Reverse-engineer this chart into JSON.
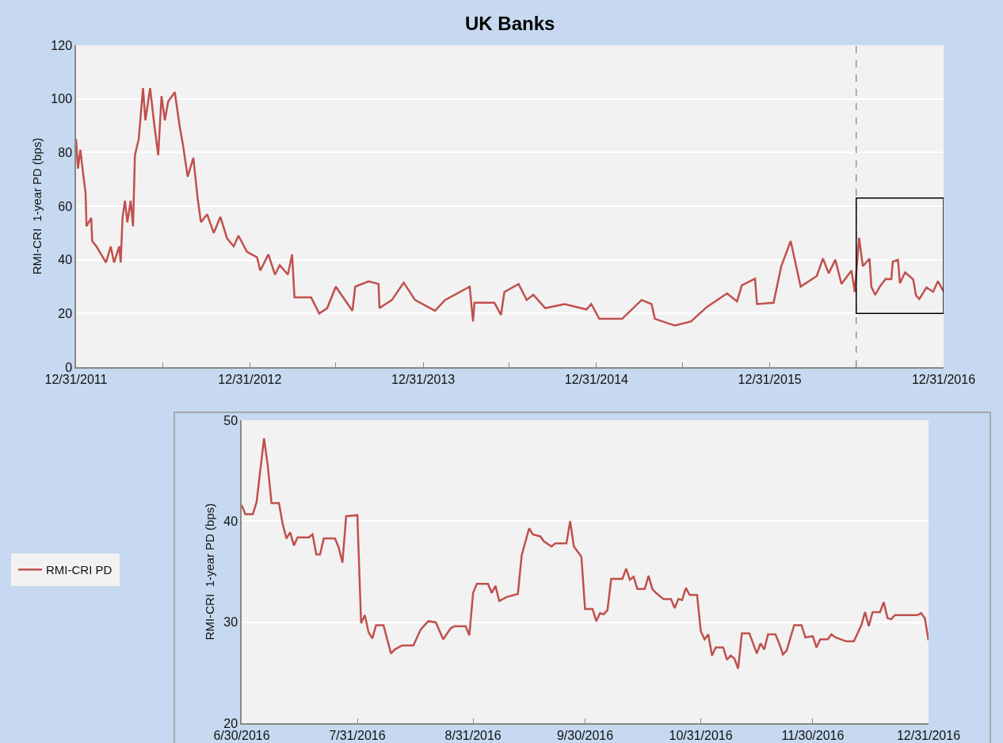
{
  "chart_data": [
    {
      "type": "line",
      "title": "UK Banks",
      "ylabel": "RMI-CRI  1-year PD (bps)",
      "x": [
        "2011-12-31",
        "2012-01-04",
        "2012-01-09",
        "2012-01-15",
        "2012-01-20",
        "2012-01-22",
        "2012-02-01",
        "2012-02-03",
        "2012-02-12",
        "2012-02-22",
        "2012-03-03",
        "2012-03-13",
        "2012-03-20",
        "2012-03-31",
        "2012-04-03",
        "2012-04-07",
        "2012-04-12",
        "2012-04-17",
        "2012-04-24",
        "2012-04-29",
        "2012-05-03",
        "2012-05-11",
        "2012-05-20",
        "2012-05-25",
        "2012-06-04",
        "2012-06-13",
        "2012-06-21",
        "2012-06-28",
        "2012-07-05",
        "2012-07-12",
        "2012-07-26",
        "2012-08-05",
        "2012-08-12",
        "2012-08-22",
        "2012-09-03",
        "2012-09-12",
        "2012-09-19",
        "2012-10-02",
        "2012-10-16",
        "2012-10-30",
        "2012-11-13",
        "2012-11-27",
        "2012-12-07",
        "2012-12-25",
        "2013-01-15",
        "2013-01-22",
        "2013-02-08",
        "2013-02-22",
        "2013-03-04",
        "2013-03-21",
        "2013-03-30",
        "2013-04-04",
        "2013-04-21",
        "2013-05-09",
        "2013-05-26",
        "2013-06-12",
        "2013-06-30",
        "2013-08-04",
        "2013-08-10",
        "2013-09-07",
        "2013-09-28",
        "2013-09-30",
        "2013-10-26",
        "2013-11-20",
        "2013-12-14",
        "2014-01-25",
        "2014-02-15",
        "2014-04-08",
        "2014-04-15",
        "2014-04-18",
        "2014-05-30",
        "2014-06-13",
        "2014-06-20",
        "2014-07-20",
        "2014-08-06",
        "2014-08-20",
        "2014-09-14",
        "2014-10-25",
        "2014-12-10",
        "2014-12-20",
        "2015-01-06",
        "2015-02-23",
        "2015-04-05",
        "2015-04-26",
        "2015-05-03",
        "2015-06-14",
        "2015-07-18",
        "2015-08-21",
        "2015-10-02",
        "2015-10-23",
        "2015-11-02",
        "2015-11-30",
        "2015-12-04",
        "2016-01-08",
        "2016-01-24",
        "2016-02-13",
        "2016-03-05",
        "2016-04-08",
        "2016-04-21",
        "2016-05-03",
        "2016-05-17",
        "2016-05-30",
        "2016-06-20",
        "2016-06-27",
        "2016-07-06",
        "2016-07-14",
        "2016-07-28",
        "2016-08-01",
        "2016-08-09",
        "2016-08-19",
        "2016-08-31",
        "2016-09-12",
        "2016-09-15",
        "2016-09-26",
        "2016-09-30",
        "2016-10-11",
        "2016-10-28",
        "2016-11-03",
        "2016-11-10",
        "2016-11-25",
        "2016-12-09",
        "2016-12-19",
        "2016-12-31"
      ],
      "series": [
        {
          "name": "RMI-CRI PD",
          "color": "#c0504d",
          "values": [
            85,
            74,
            81,
            72,
            65,
            52.5,
            55.6,
            47,
            45,
            42,
            39,
            45,
            39,
            45,
            39,
            56,
            62,
            54,
            62,
            52.5,
            79,
            85,
            104,
            92,
            104,
            90,
            79,
            101,
            92,
            99,
            102.5,
            90,
            83,
            71,
            78,
            63,
            54,
            57,
            50,
            56,
            48,
            45,
            49,
            43,
            41,
            36,
            42,
            34.5,
            38,
            34.5,
            42,
            26,
            26,
            26,
            20,
            22,
            30,
            21,
            30,
            32,
            31,
            22,
            25,
            31.5,
            25,
            21,
            25,
            30,
            17,
            24,
            24,
            19.5,
            28,
            31,
            25,
            27,
            22,
            23.5,
            21.5,
            23.5,
            18,
            18,
            25,
            23.5,
            18,
            15.5,
            17,
            22.5,
            27.5,
            24.5,
            30.5,
            33,
            23.5,
            24,
            37.5,
            47,
            30,
            34,
            40.5,
            35,
            40,
            31,
            36,
            28,
            48.2,
            37.6,
            40.5,
            29.9,
            26.9,
            30.1,
            32.9,
            32.8,
            39.3,
            40.0,
            31.3,
            35.3,
            32.7,
            26.7,
            25.4,
            29.7,
            28.1,
            32.0,
            28.2
          ]
        }
      ],
      "xlim": [
        "2011-12-31",
        "2016-12-31"
      ],
      "xticks": [
        {
          "value": "2011-12-31",
          "label": "12/31/2011"
        },
        {
          "value": "2012-06-30",
          "label": null
        },
        {
          "value": "2012-12-31",
          "label": "12/31/2012"
        },
        {
          "value": "2013-06-30",
          "label": null
        },
        {
          "value": "2013-12-31",
          "label": "12/31/2013"
        },
        {
          "value": "2014-06-30",
          "label": null
        },
        {
          "value": "2014-12-31",
          "label": "12/31/2014"
        },
        {
          "value": "2015-06-30",
          "label": null
        },
        {
          "value": "2015-12-31",
          "label": "12/31/2015"
        },
        {
          "value": "2016-06-30",
          "label": null
        },
        {
          "value": "2016-12-31",
          "label": "12/31/2016"
        }
      ],
      "ylim": [
        0,
        120
      ],
      "yticks": [
        0,
        20,
        40,
        60,
        80,
        100,
        120
      ],
      "ref_lines": [
        {
          "axis": "x",
          "value": "2016-06-30",
          "color": "#7f7f7f",
          "line_style": "dashed"
        }
      ],
      "grid": "y",
      "legend": "left",
      "marker": "none",
      "line_style": "solid"
    },
    {
      "type": "line",
      "ylabel": "RMI-CRI  1-year PD (bps)",
      "x": [
        "2016-06-30",
        "2016-07-01",
        "2016-07-03",
        "2016-07-04",
        "2016-07-06",
        "2016-07-07",
        "2016-07-08",
        "2016-07-10",
        "2016-07-11",
        "2016-07-12",
        "2016-07-13",
        "2016-07-14",
        "2016-07-15",
        "2016-07-18",
        "2016-07-19",
        "2016-07-20",
        "2016-07-21",
        "2016-07-22",
        "2016-07-25",
        "2016-07-26",
        "2016-07-27",
        "2016-07-28",
        "2016-07-31",
        "2016-08-01",
        "2016-08-02",
        "2016-08-03",
        "2016-08-04",
        "2016-08-05",
        "2016-08-07",
        "2016-08-09",
        "2016-08-10",
        "2016-08-12",
        "2016-08-15",
        "2016-08-17",
        "2016-08-19",
        "2016-08-21",
        "2016-08-23",
        "2016-08-25",
        "2016-08-26",
        "2016-08-29",
        "2016-08-30",
        "2016-08-31",
        "2016-09-01",
        "2016-09-04",
        "2016-09-05",
        "2016-09-06",
        "2016-09-07",
        "2016-09-09",
        "2016-09-12",
        "2016-09-13",
        "2016-09-15",
        "2016-09-16",
        "2016-09-18",
        "2016-09-19",
        "2016-09-21",
        "2016-09-22",
        "2016-09-25",
        "2016-09-26",
        "2016-09-27",
        "2016-09-29",
        "2016-09-30",
        "2016-10-02",
        "2016-10-03",
        "2016-10-04",
        "2016-10-05",
        "2016-10-06",
        "2016-10-07",
        "2016-10-10",
        "2016-10-11",
        "2016-10-12",
        "2016-10-13",
        "2016-10-14",
        "2016-10-16",
        "2016-10-17",
        "2016-10-18",
        "2016-10-19",
        "2016-10-21",
        "2016-10-23",
        "2016-10-24",
        "2016-10-25",
        "2016-10-26",
        "2016-10-27",
        "2016-10-28",
        "2016-10-30",
        "2016-10-31",
        "2016-11-01",
        "2016-11-02",
        "2016-11-03",
        "2016-11-04",
        "2016-11-06",
        "2016-11-07",
        "2016-11-08",
        "2016-11-09",
        "2016-11-10",
        "2016-11-11",
        "2016-11-13",
        "2016-11-15",
        "2016-11-16",
        "2016-11-17",
        "2016-11-18",
        "2016-11-20",
        "2016-11-21",
        "2016-11-22",
        "2016-11-23",
        "2016-11-25",
        "2016-11-27",
        "2016-11-28",
        "2016-11-30",
        "2016-12-01",
        "2016-12-02",
        "2016-12-04",
        "2016-12-05",
        "2016-12-06",
        "2016-12-09",
        "2016-12-11",
        "2016-12-13",
        "2016-12-14",
        "2016-12-15",
        "2016-12-16",
        "2016-12-18",
        "2016-12-19",
        "2016-12-20",
        "2016-12-21",
        "2016-12-22",
        "2016-12-28",
        "2016-12-29",
        "2016-12-30",
        "2016-12-31"
      ],
      "series": [
        {
          "color": "#c0504d",
          "values": [
            41.6,
            40.7,
            40.7,
            41.9,
            48.2,
            45.5,
            41.8,
            41.8,
            39.7,
            38.3,
            38.9,
            37.6,
            38.4,
            38.4,
            38.7,
            36.7,
            36.7,
            38.3,
            38.3,
            37.4,
            35.9,
            40.5,
            40.6,
            29.9,
            30.7,
            29.0,
            28.4,
            29.7,
            29.7,
            26.9,
            27.3,
            27.7,
            27.7,
            29.3,
            30.1,
            30.0,
            28.3,
            29.4,
            29.6,
            29.6,
            28.7,
            32.9,
            33.8,
            33.8,
            32.9,
            33.6,
            32.1,
            32.5,
            32.8,
            36.6,
            39.3,
            38.7,
            38.5,
            38.0,
            37.5,
            37.8,
            37.8,
            40.0,
            37.5,
            36.5,
            31.3,
            31.3,
            30.1,
            30.9,
            30.8,
            31.2,
            34.3,
            34.3,
            35.3,
            34.2,
            34.5,
            33.3,
            33.3,
            34.6,
            33.3,
            32.9,
            32.3,
            32.3,
            31.4,
            32.3,
            32.2,
            33.4,
            32.7,
            32.7,
            29.1,
            28.3,
            28.8,
            26.7,
            27.5,
            27.5,
            26.3,
            26.7,
            26.4,
            25.4,
            28.9,
            28.9,
            26.9,
            27.9,
            27.3,
            28.8,
            28.8,
            27.9,
            26.8,
            27.2,
            29.7,
            29.7,
            28.5,
            28.6,
            27.5,
            28.3,
            28.3,
            28.8,
            28.5,
            28.1,
            28.1,
            29.7,
            31.0,
            29.6,
            31.0,
            31.0,
            32.0,
            30.4,
            30.3,
            30.7,
            30.7,
            30.9,
            30.4,
            28.2
          ]
        }
      ],
      "xlim": [
        "2016-06-30",
        "2016-12-31"
      ],
      "xticks": [
        {
          "value": "2016-06-30",
          "label": "6/30/2016"
        },
        {
          "value": "2016-07-31",
          "label": "7/31/2016"
        },
        {
          "value": "2016-08-31",
          "label": "8/31/2016"
        },
        {
          "value": "2016-09-30",
          "label": "9/30/2016"
        },
        {
          "value": "2016-10-31",
          "label": "10/31/2016"
        },
        {
          "value": "2016-11-30",
          "label": "11/30/2016"
        },
        {
          "value": "2016-12-31",
          "label": "12/31/2016"
        }
      ],
      "ylim": [
        20,
        50
      ],
      "yticks": [
        20,
        30,
        40,
        50
      ],
      "grid": "y",
      "marker": "none",
      "line_style": "solid"
    }
  ]
}
